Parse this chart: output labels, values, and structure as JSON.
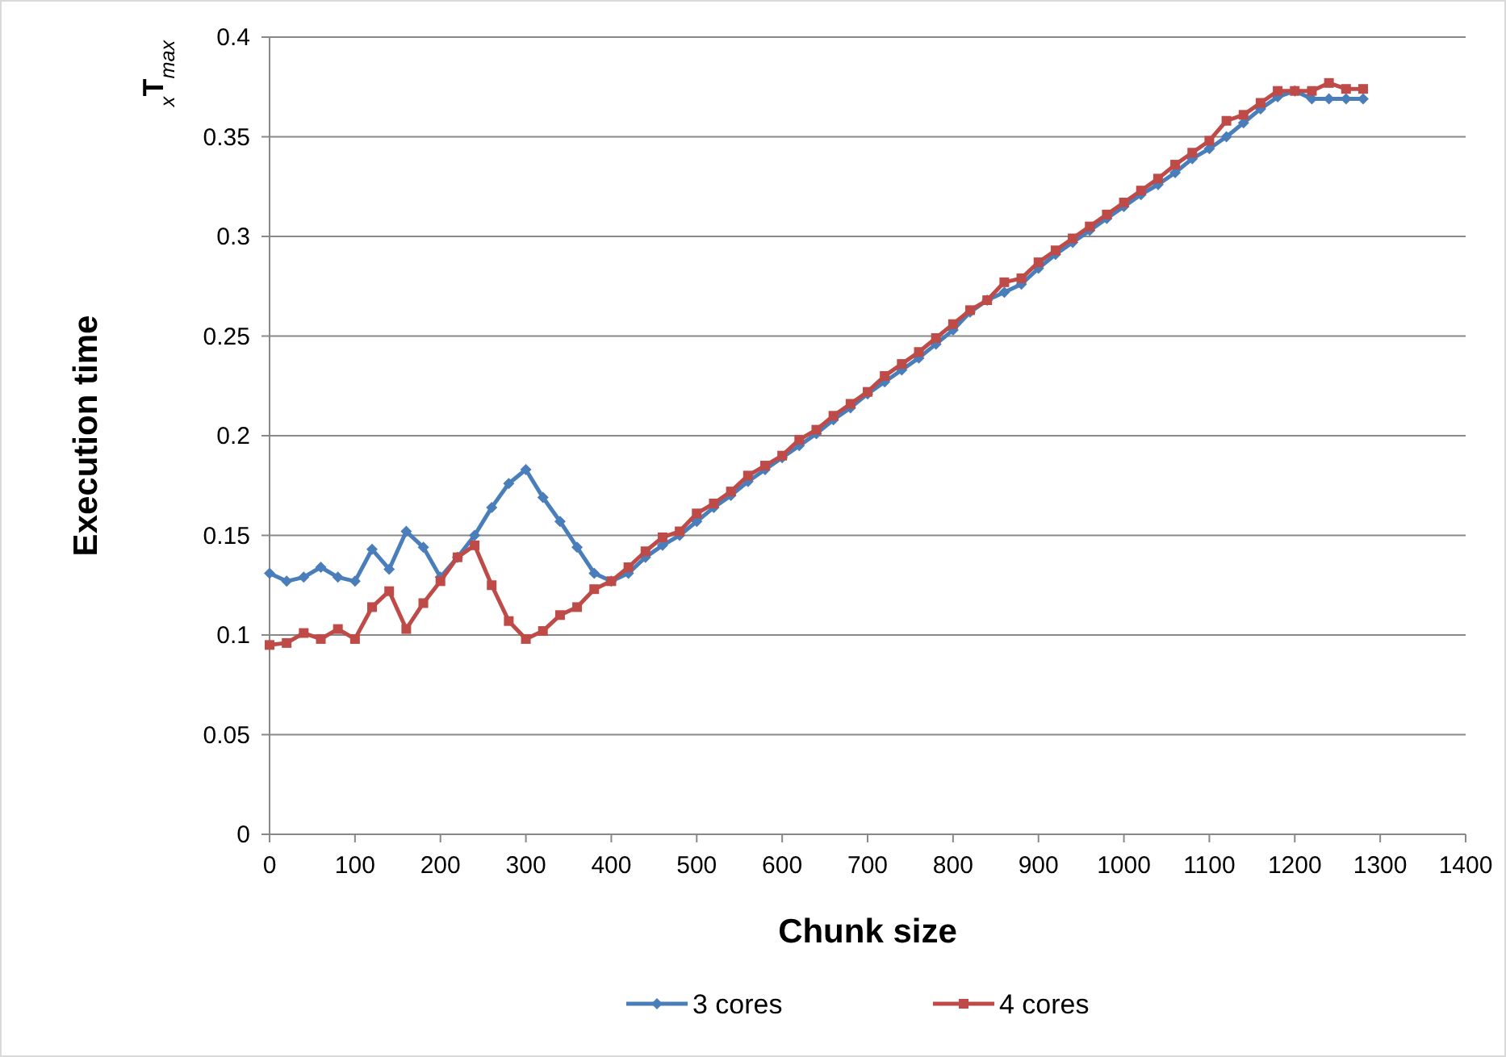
{
  "chart_data": {
    "type": "line",
    "xlabel": "Chunk size",
    "ylabel": "Execution time",
    "annotations": [
      "$_{x}$T$_{max}$"
    ],
    "x": [
      0,
      20,
      40,
      60,
      80,
      100,
      120,
      140,
      160,
      180,
      200,
      220,
      240,
      260,
      280,
      300,
      320,
      340,
      360,
      380,
      400,
      420,
      440,
      460,
      480,
      500,
      520,
      540,
      560,
      580,
      600,
      620,
      640,
      660,
      680,
      700,
      720,
      740,
      760,
      780,
      800,
      820,
      840,
      860,
      880,
      900,
      920,
      940,
      960,
      980,
      1000,
      1020,
      1040,
      1060,
      1080,
      1100,
      1120,
      1140,
      1160,
      1180,
      1200,
      1220,
      1240,
      1260,
      1280
    ],
    "series": [
      {
        "name": "3 cores",
        "color": "#4a7ebb",
        "marker": "diamond",
        "values": [
          0.131,
          0.127,
          0.129,
          0.134,
          0.129,
          0.127,
          0.143,
          0.133,
          0.152,
          0.144,
          0.129,
          0.139,
          0.15,
          0.164,
          0.176,
          0.183,
          0.169,
          0.157,
          0.144,
          0.131,
          0.127,
          0.131,
          0.139,
          0.145,
          0.15,
          0.157,
          0.164,
          0.17,
          0.177,
          0.183,
          0.189,
          0.195,
          0.201,
          0.208,
          0.214,
          0.221,
          0.227,
          0.233,
          0.239,
          0.246,
          0.253,
          0.262,
          0.268,
          0.272,
          0.276,
          0.284,
          0.291,
          0.297,
          0.303,
          0.309,
          0.315,
          0.321,
          0.326,
          0.332,
          0.339,
          0.344,
          0.35,
          0.357,
          0.364,
          0.37,
          0.373,
          0.369,
          0.369,
          0.369,
          0.369
        ]
      },
      {
        "name": "4 cores",
        "color": "#be4b48",
        "marker": "square",
        "values": [
          0.095,
          0.096,
          0.101,
          0.098,
          0.103,
          0.098,
          0.114,
          0.122,
          0.103,
          0.116,
          0.127,
          0.139,
          0.145,
          0.125,
          0.107,
          0.098,
          0.102,
          0.11,
          0.114,
          0.123,
          0.127,
          0.134,
          0.142,
          0.149,
          0.152,
          0.161,
          0.166,
          0.172,
          0.18,
          0.185,
          0.19,
          0.198,
          0.203,
          0.21,
          0.216,
          0.222,
          0.23,
          0.236,
          0.242,
          0.249,
          0.256,
          0.263,
          0.268,
          0.277,
          0.279,
          0.287,
          0.293,
          0.299,
          0.305,
          0.311,
          0.317,
          0.323,
          0.329,
          0.336,
          0.342,
          0.348,
          0.358,
          0.361,
          0.367,
          0.373,
          0.373,
          0.373,
          0.377,
          0.374,
          0.374
        ]
      }
    ],
    "xlim": [
      0,
      1400
    ],
    "xticks": [
      0,
      100,
      200,
      300,
      400,
      500,
      600,
      700,
      800,
      900,
      1000,
      1100,
      1200,
      1300,
      1400
    ],
    "ylim": [
      0,
      0.4
    ],
    "yticks": [
      0,
      0.05,
      0.1,
      0.15,
      0.2,
      0.25,
      0.3,
      0.35,
      0.4
    ],
    "grid": "y",
    "legend": "bottom",
    "line_style": "solid"
  }
}
